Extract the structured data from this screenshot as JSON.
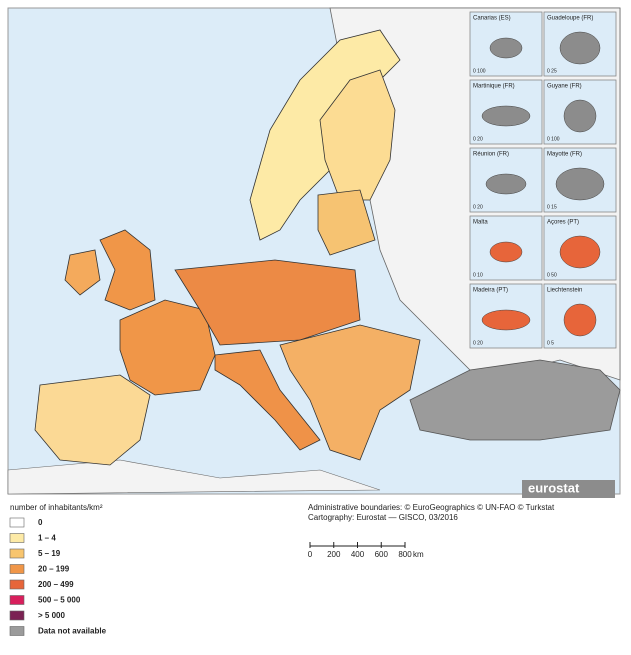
{
  "map": {
    "logo": "eurostat",
    "insets": [
      {
        "label": "Canarias (ES)",
        "scale": "0 100"
      },
      {
        "label": "Guadeloupe (FR)",
        "scale": "0 25"
      },
      {
        "label": "Martinique (FR)",
        "scale": "0 20"
      },
      {
        "label": "Guyane (FR)",
        "scale": "0 100"
      },
      {
        "label": "Réunion (FR)",
        "scale": "0 20"
      },
      {
        "label": "Mayotte (FR)",
        "scale": "0 15"
      },
      {
        "label": "Malta",
        "scale": "0 10"
      },
      {
        "label": "Açores (PT)",
        "scale": "0 50"
      },
      {
        "label": "Madeira (PT)",
        "scale": "0 20"
      },
      {
        "label": "Liechtenstein",
        "scale": "0 5"
      }
    ]
  },
  "legend": {
    "title": "number of inhabitants/km²",
    "items": [
      {
        "label": "0",
        "color": "#ffffff"
      },
      {
        "label": "1 – 4",
        "color": "#fdeaa6"
      },
      {
        "label": "5 – 19",
        "color": "#f8c56e"
      },
      {
        "label": "20 – 199",
        "color": "#f09648"
      },
      {
        "label": "200 – 499",
        "color": "#e7653a"
      },
      {
        "label": "500 – 5 000",
        "color": "#d81f5c"
      },
      {
        "label": "> 5 000",
        "color": "#7b2253"
      },
      {
        "label": "Data not available",
        "color": "#9b9b9b"
      }
    ]
  },
  "credits": [
    "Administrative boundaries: © EuroGeographics © UN-FAO © Turkstat",
    "Cartography: Eurostat — GISCO, 03/2016"
  ],
  "scale_bar": {
    "ticks": [
      0,
      200,
      400,
      600,
      800
    ],
    "unit": "km"
  }
}
